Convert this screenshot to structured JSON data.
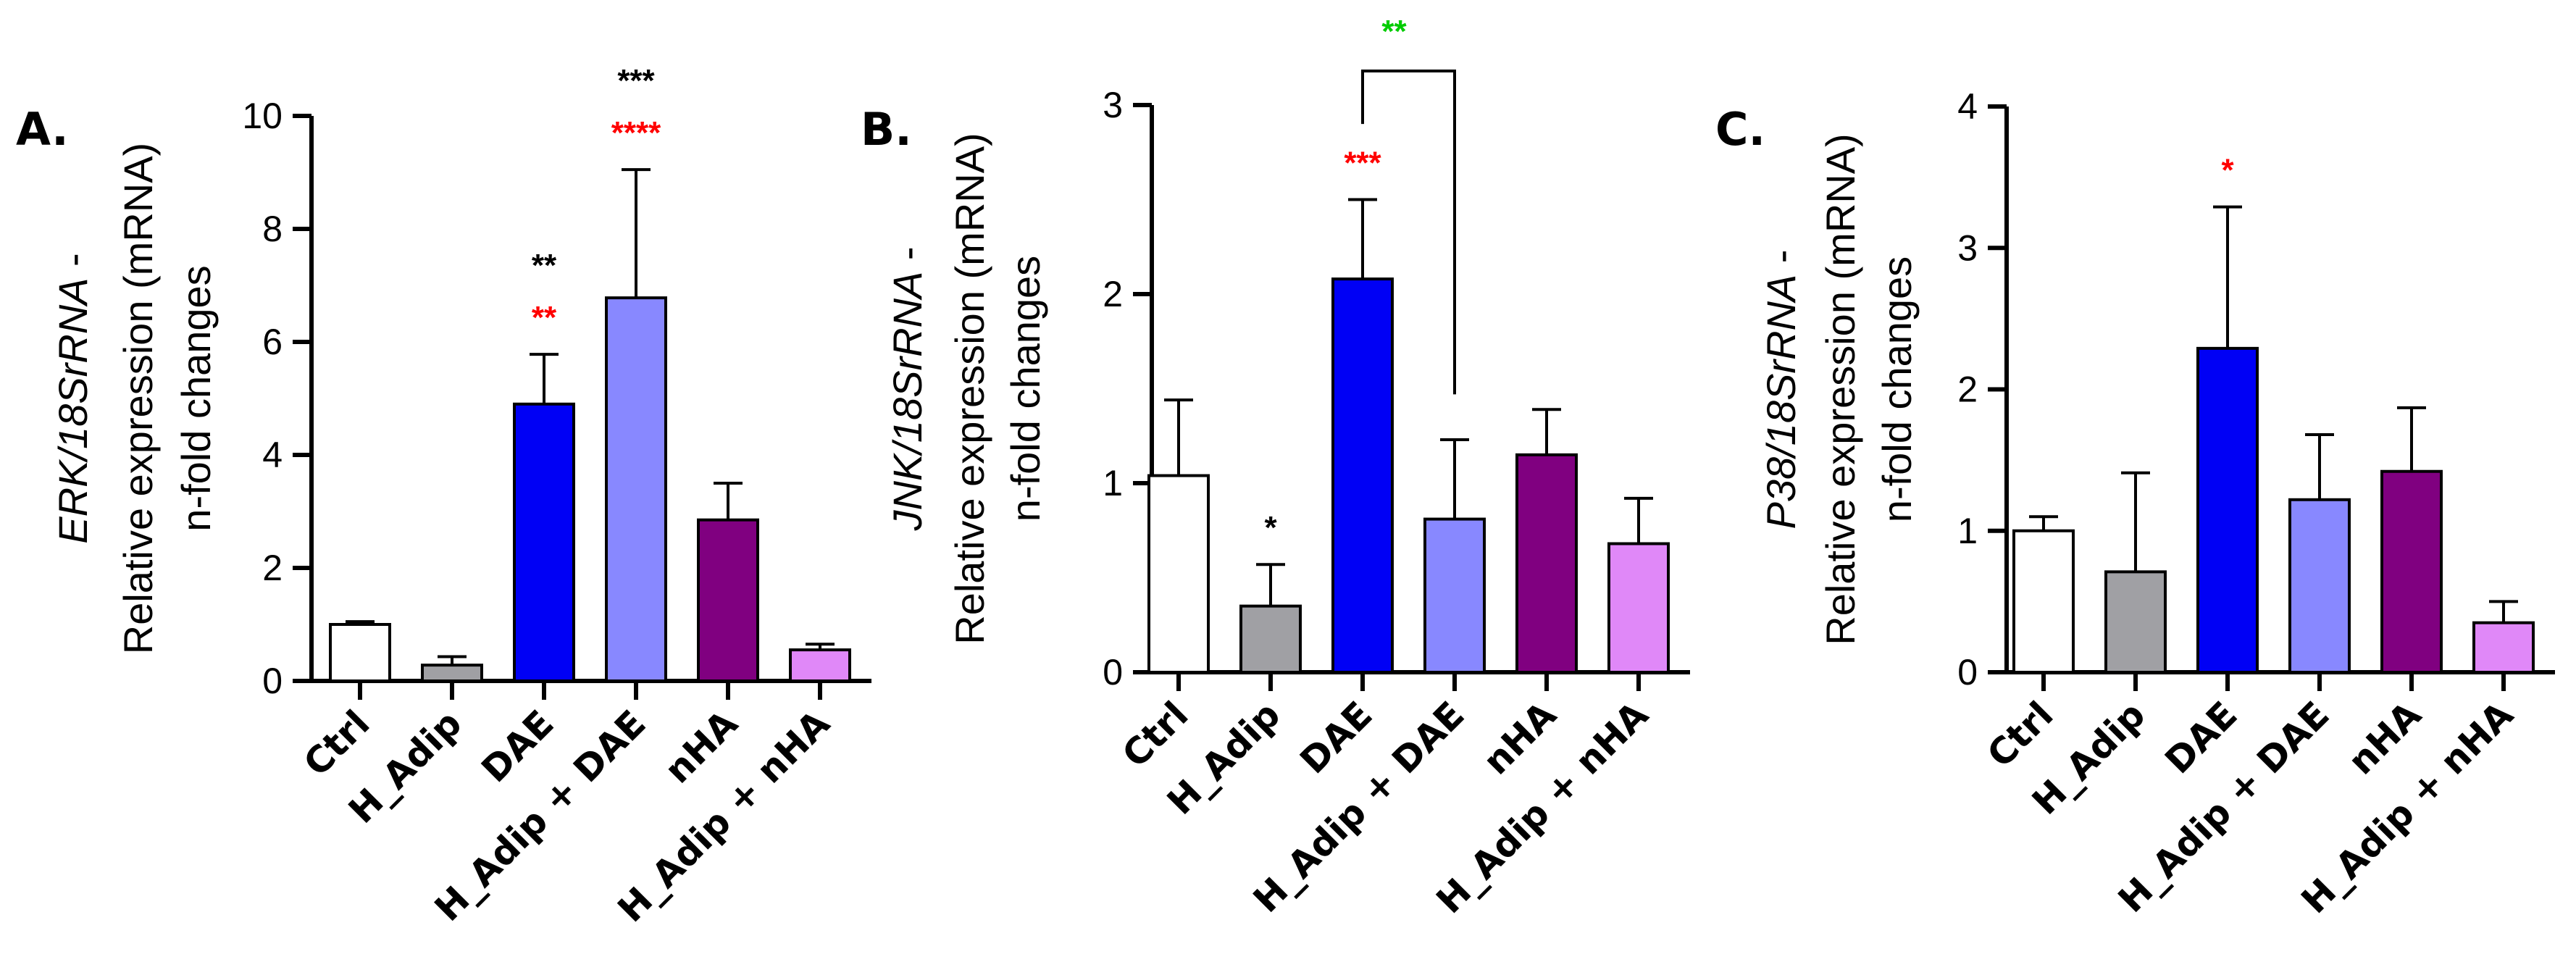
{
  "chart_data": [
    {
      "type": "bar",
      "panel_label": "A.",
      "ylabel_gene": "ERK/18SrRNA",
      "ylabel_suffix": " -",
      "ylabel_line2": "Relative expression (mRNA)",
      "ylabel_line3": "n-fold changes",
      "ylim": [
        0,
        10
      ],
      "yticks": [
        "0",
        "2",
        "4",
        "6",
        "8",
        "10"
      ],
      "categories": [
        "Ctrl",
        "H_Adip",
        "DAE",
        "H_Adip + DAE",
        "nHA",
        "H_Adip + nHA"
      ],
      "values": [
        1.0,
        0.28,
        4.9,
        6.78,
        2.85,
        0.55
      ],
      "error_upper": [
        0.05,
        0.15,
        0.88,
        2.27,
        0.65,
        0.1
      ],
      "bar_colors": [
        "#ffffff",
        "#a0a0a4",
        "#0000f5",
        "#8888ff",
        "#800080",
        "#e088f8"
      ],
      "significance": [
        {
          "category": 2,
          "text": "**",
          "color": "#ff0000",
          "level": 0
        },
        {
          "category": 2,
          "text": "**",
          "color": "#000000",
          "level": 1
        },
        {
          "category": 3,
          "text": "****",
          "color": "#ff0000",
          "level": 0
        },
        {
          "category": 3,
          "text": "***",
          "color": "#000000",
          "level": 1
        }
      ],
      "brackets": []
    },
    {
      "type": "bar",
      "panel_label": "B.",
      "ylabel_gene": "JNK/18SrRNA",
      "ylabel_suffix": " -",
      "ylabel_line2": "Relative expression (mRNA)",
      "ylabel_line3": "n-fold changes",
      "ylim": [
        0,
        3
      ],
      "yticks": [
        "0",
        "1",
        "2",
        "3"
      ],
      "categories": [
        "Ctrl",
        "H_Adip",
        "DAE",
        "H_Adip + DAE",
        "nHA",
        "H_Adip + nHA"
      ],
      "values": [
        1.04,
        0.35,
        2.08,
        0.81,
        1.15,
        0.68
      ],
      "error_upper": [
        0.4,
        0.22,
        0.42,
        0.42,
        0.24,
        0.24
      ],
      "bar_colors": [
        "#ffffff",
        "#a0a0a4",
        "#0000f5",
        "#8888ff",
        "#800080",
        "#e088f8"
      ],
      "significance": [
        {
          "category": 1,
          "text": "*",
          "color": "#000000",
          "level": 0
        },
        {
          "category": 2,
          "text": "***",
          "color": "#ff0000",
          "level": 0
        }
      ],
      "brackets": [
        {
          "from": 2,
          "to": 3,
          "text": "**",
          "color": "#00cc00",
          "top": 3.18,
          "left_start": 2.9,
          "right_start": 1.47
        }
      ]
    },
    {
      "type": "bar",
      "panel_label": "C.",
      "ylabel_gene": "P38/18SrRNA",
      "ylabel_suffix": " -",
      "ylabel_line2": "Relative expression (mRNA)",
      "ylabel_line3": "n-fold changes",
      "ylim": [
        0,
        4
      ],
      "yticks": [
        "0",
        "1",
        "2",
        "3",
        "4"
      ],
      "categories": [
        "Ctrl",
        "H_Adip",
        "DAE",
        "H_Adip + DAE",
        "nHA",
        "H_Adip + nHA"
      ],
      "values": [
        1.0,
        0.71,
        2.29,
        1.22,
        1.42,
        0.35
      ],
      "error_upper": [
        0.1,
        0.7,
        1.0,
        0.46,
        0.45,
        0.15
      ],
      "bar_colors": [
        "#ffffff",
        "#a0a0a4",
        "#0000f5",
        "#8888ff",
        "#800080",
        "#e088f8"
      ],
      "significance": [
        {
          "category": 2,
          "text": "*",
          "color": "#ff0000",
          "level": 0
        }
      ],
      "brackets": []
    }
  ]
}
